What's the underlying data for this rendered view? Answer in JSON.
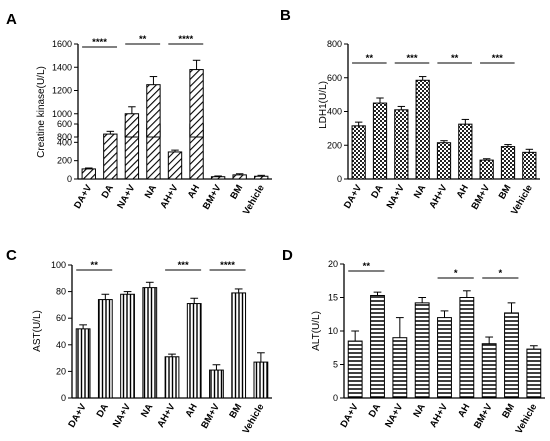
{
  "chart_data": [
    {
      "panel": "A",
      "type": "bar",
      "ylabel": "Creatine kinase(U/L)",
      "categories": [
        "DA+V",
        "DA",
        "NA+V",
        "NA",
        "AH+V",
        "AH",
        "BM+V",
        "BM",
        "Vehicle"
      ],
      "values": [
        110,
        490,
        1000,
        1250,
        295,
        1380,
        25,
        45,
        30
      ],
      "errors": [
        10,
        30,
        60,
        70,
        20,
        80,
        8,
        12,
        10
      ],
      "ylim": [
        0,
        1600
      ],
      "axis_break": [
        600,
        800
      ],
      "yticks": [
        0,
        200,
        400,
        600,
        800,
        1000,
        1200,
        1400,
        1600
      ],
      "pattern": "diagonal-hatch",
      "significance": [
        {
          "from": 0,
          "to": 1,
          "label": "****"
        },
        {
          "from": 2,
          "to": 3,
          "label": "**"
        },
        {
          "from": 4,
          "to": 5,
          "label": "****"
        }
      ]
    },
    {
      "panel": "B",
      "type": "bar",
      "ylabel": "LDH1(U/L)",
      "categories": [
        "DA+V",
        "DA",
        "NA+V",
        "NA",
        "AH+V",
        "AH",
        "BM+V",
        "BM",
        "Vehicle"
      ],
      "values": [
        315,
        450,
        410,
        585,
        215,
        325,
        112,
        192,
        158
      ],
      "errors": [
        22,
        30,
        20,
        22,
        12,
        28,
        8,
        12,
        18
      ],
      "ylim": [
        0,
        800
      ],
      "yticks": [
        0,
        200,
        400,
        600,
        800
      ],
      "pattern": "checker",
      "significance": [
        {
          "from": 0,
          "to": 1,
          "label": "**"
        },
        {
          "from": 2,
          "to": 3,
          "label": "***"
        },
        {
          "from": 4,
          "to": 5,
          "label": "**"
        },
        {
          "from": 6,
          "to": 7,
          "label": "***"
        }
      ]
    },
    {
      "panel": "C",
      "type": "bar",
      "ylabel": "AST(U/L)",
      "categories": [
        "DA+V",
        "DA",
        "NA+V",
        "NA",
        "AH+V",
        "AH",
        "BM+V",
        "BM",
        "Vehicle"
      ],
      "values": [
        52,
        74,
        78,
        83,
        31,
        71,
        21,
        79,
        27
      ],
      "errors": [
        3,
        4,
        2,
        4,
        2,
        4,
        4,
        3,
        7
      ],
      "ylim": [
        0,
        100
      ],
      "yticks": [
        0,
        20,
        40,
        60,
        80,
        100
      ],
      "pattern": "vertical-lines",
      "significance": [
        {
          "from": 0,
          "to": 1,
          "label": "**"
        },
        {
          "from": 4,
          "to": 5,
          "label": "***"
        },
        {
          "from": 6,
          "to": 7,
          "label": "****"
        }
      ]
    },
    {
      "panel": "D",
      "type": "bar",
      "ylabel": "ALT(U/L)",
      "categories": [
        "DA+V",
        "DA",
        "NA+V",
        "NA",
        "AH+V",
        "AH",
        "BM+V",
        "BM",
        "Vehicle"
      ],
      "values": [
        8.5,
        15.3,
        9.0,
        14.2,
        12.0,
        15.0,
        8.1,
        12.7,
        7.3
      ],
      "errors": [
        1.5,
        0.5,
        3.0,
        0.8,
        1.0,
        1.0,
        1.0,
        1.5,
        0.5
      ],
      "ylim": [
        0,
        20
      ],
      "yticks": [
        0,
        5,
        10,
        15,
        20
      ],
      "pattern": "horizontal-lines",
      "significance": [
        {
          "from": 0,
          "to": 1,
          "label": "**"
        },
        {
          "from": 4,
          "to": 5,
          "label": "*"
        },
        {
          "from": 6,
          "to": 7,
          "label": "*"
        }
      ]
    }
  ]
}
